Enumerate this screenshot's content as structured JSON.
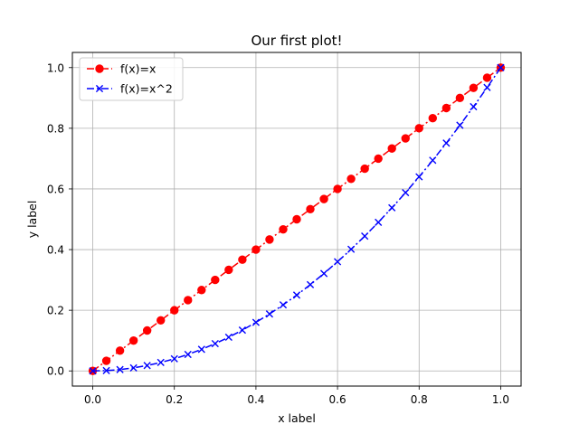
{
  "chart_data": {
    "type": "line",
    "title": "Our first plot!",
    "xlabel": "x label",
    "ylabel": "y label",
    "xlim": [
      -0.05,
      1.05
    ],
    "ylim": [
      -0.05,
      1.05
    ],
    "xticks": [
      0.0,
      0.2,
      0.4,
      0.6,
      0.8,
      1.0
    ],
    "yticks": [
      0.0,
      0.2,
      0.4,
      0.6,
      0.8,
      1.0
    ],
    "xtick_labels": [
      "0.0",
      "0.2",
      "0.4",
      "0.6",
      "0.8",
      "1.0"
    ],
    "ytick_labels": [
      "0.0",
      "0.2",
      "0.4",
      "0.6",
      "0.8",
      "1.0"
    ],
    "grid": true,
    "legend_position": "upper-left",
    "x": [
      0.0,
      0.0333,
      0.0667,
      0.1,
      0.1333,
      0.1667,
      0.2,
      0.2333,
      0.2667,
      0.3,
      0.3333,
      0.3667,
      0.4,
      0.4333,
      0.4667,
      0.5,
      0.5333,
      0.5667,
      0.6,
      0.6333,
      0.6667,
      0.7,
      0.7333,
      0.7667,
      0.8,
      0.8333,
      0.8667,
      0.9,
      0.9333,
      0.9667,
      1.0
    ],
    "series": [
      {
        "name": "f(x)=x",
        "color": "#ff0000",
        "marker": "circle",
        "line_style": "dash-dot",
        "values": [
          0.0,
          0.0333,
          0.0667,
          0.1,
          0.1333,
          0.1667,
          0.2,
          0.2333,
          0.2667,
          0.3,
          0.3333,
          0.3667,
          0.4,
          0.4333,
          0.4667,
          0.5,
          0.5333,
          0.5667,
          0.6,
          0.6333,
          0.6667,
          0.7,
          0.7333,
          0.7667,
          0.8,
          0.8333,
          0.8667,
          0.9,
          0.9333,
          0.9667,
          1.0
        ]
      },
      {
        "name": "f(x)=x^2",
        "color": "#0000ff",
        "marker": "x",
        "line_style": "dash-dot",
        "values": [
          0.0,
          0.0011,
          0.0044,
          0.01,
          0.0178,
          0.0278,
          0.04,
          0.0544,
          0.0711,
          0.09,
          0.1111,
          0.1344,
          0.16,
          0.1878,
          0.2178,
          0.25,
          0.2844,
          0.3211,
          0.36,
          0.4011,
          0.4444,
          0.49,
          0.5378,
          0.5878,
          0.64,
          0.6944,
          0.7511,
          0.81,
          0.8711,
          0.9344,
          1.0
        ]
      }
    ]
  }
}
